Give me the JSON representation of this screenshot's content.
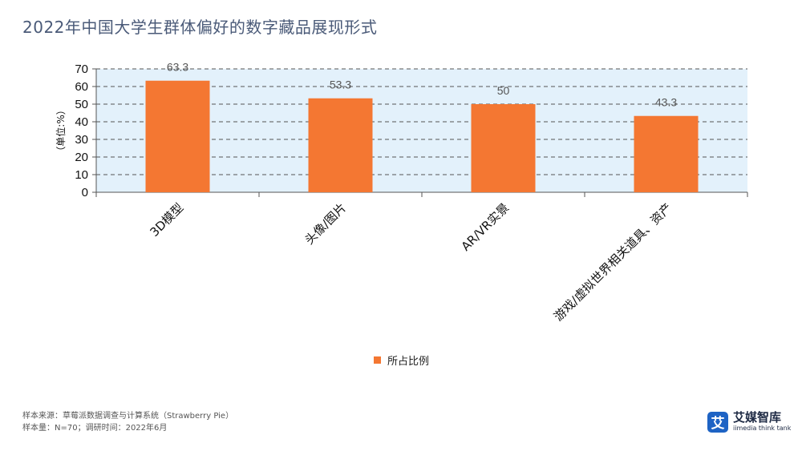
{
  "title": "2022年中国大学生群体偏好的数字藏品展现形式",
  "chart_data": {
    "type": "bar",
    "categories": [
      "3D模型",
      "头像/图片",
      "AR/VR实景",
      "游戏/虚拟世界相关道具、资产"
    ],
    "series": [
      {
        "name": "所占比例",
        "values": [
          63.3,
          53.3,
          50,
          43.3
        ],
        "color": "#f47732"
      }
    ],
    "data_labels": [
      "63.3",
      "53.3",
      "50",
      "43.3"
    ],
    "ylabel": "（单位:%）",
    "ylim": [
      0,
      70
    ],
    "yticks": [
      0,
      10,
      20,
      30,
      40,
      50,
      60,
      70
    ],
    "grid": true,
    "legend_position": "bottom",
    "plot_background": "#e3f1fb"
  },
  "legend": {
    "label": "所占比例"
  },
  "footer": {
    "source": "样本来源：草莓派数据调查与计算系统（Strawberry Pie）",
    "sample": "样本量：N=70；调研时间：2022年6月"
  },
  "logo": {
    "mark": "艾",
    "name": "艾媒智库",
    "tagline": "iimedia think tank"
  }
}
